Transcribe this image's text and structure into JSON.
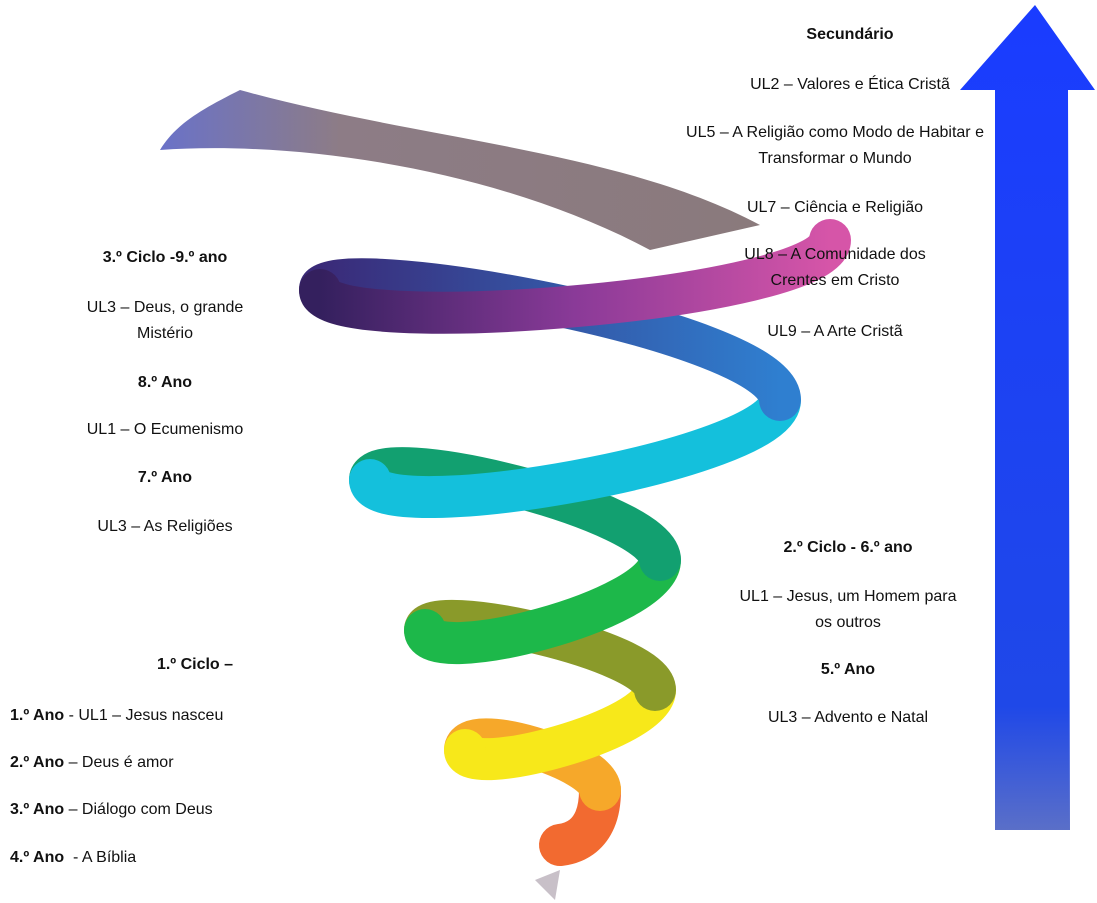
{
  "secondary": {
    "title": "Secundário",
    "items": [
      "UL2 – Valores e Ética Cristã",
      "UL5 – A Religião como Modo de Habitar e Transformar o Mundo",
      "UL7 – Ciência e Religião",
      "UL8 – A Comunidade dos Crentes em Cristo",
      "UL9 – A Arte Cristã"
    ]
  },
  "third_cycle": {
    "title": "3.º Ciclo -9.º ano",
    "ninth_unit": "UL3 – Deus, o grande Mistério",
    "eighth_title": "8.º Ano",
    "eighth_unit": "UL1 – O Ecumenismo",
    "seventh_title": "7.º Ano",
    "seventh_unit": "UL3 – As Religiões"
  },
  "second_cycle": {
    "title": "2.º Ciclo - 6.º ano",
    "sixth_unit": "UL1 – Jesus, um Homem para os outros",
    "fifth_title": "5.º Ano",
    "fifth_unit": "UL3 – Advento e Natal"
  },
  "first_cycle": {
    "title": "1.º Ciclo –",
    "rows": [
      {
        "year": "1.º Ano",
        "text": " - UL1 – Jesus nasceu"
      },
      {
        "year": "2.º Ano",
        "text": " – Deus é amor"
      },
      {
        "year": "3.º Ano",
        "text": " – Diálogo com Deus"
      },
      {
        "year": "4.º Ano",
        "text": "  - A Bíblia"
      }
    ]
  }
}
